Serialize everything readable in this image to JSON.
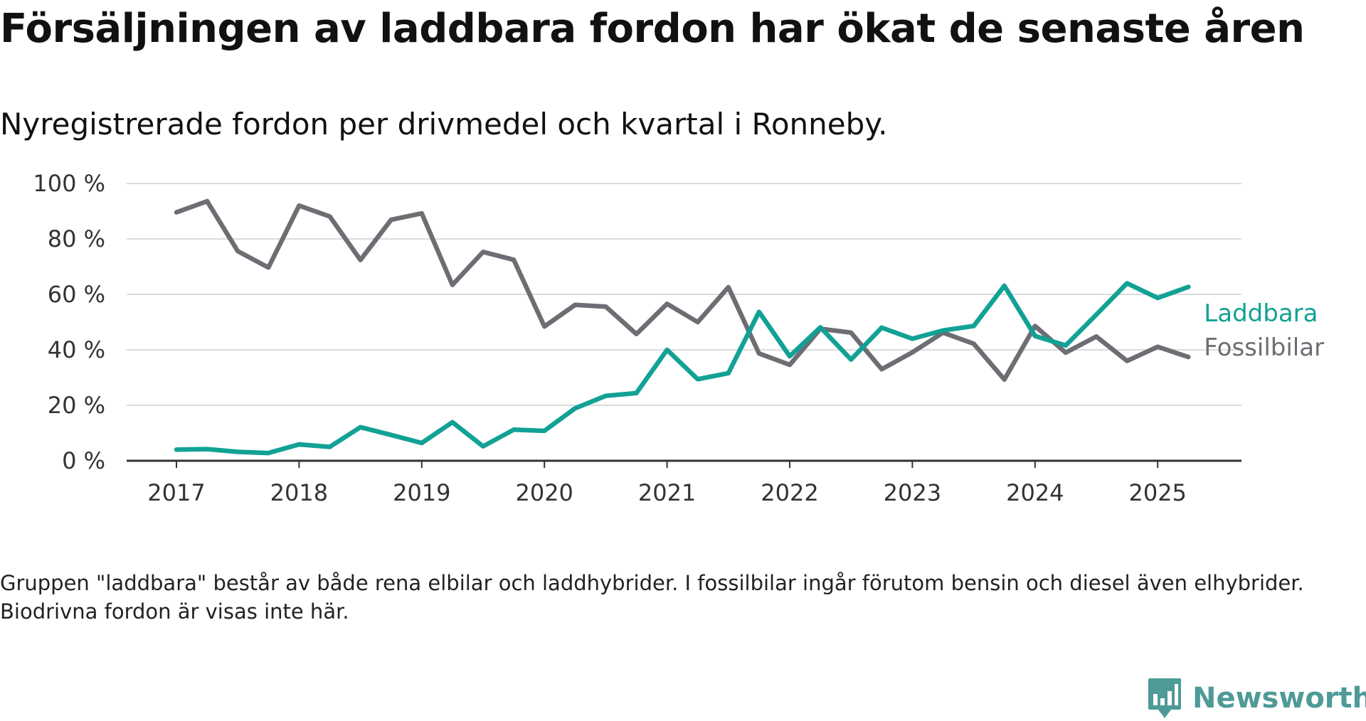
{
  "title": "Försäljningen av laddbara fordon har ökat de senaste åren",
  "subtitle": "Nyregistrerade fordon per drivmedel och kvartal i Ronneby.",
  "note": "Gruppen \"laddbara\" består av både rena elbilar och laddhybrider. I fossilbilar ingår förutom bensin och diesel även elhybrider. Biodrivna fordon är visas inte här.",
  "brand": {
    "name": "Newsworthy",
    "icon": "newsworthy-logo-icon",
    "color": "#4e9a97"
  },
  "chart_data": {
    "type": "line",
    "x_unit": "quarter",
    "x": [
      "2017 Q1",
      "2017 Q2",
      "2017 Q3",
      "2017 Q4",
      "2018 Q1",
      "2018 Q2",
      "2018 Q3",
      "2018 Q4",
      "2019 Q1",
      "2019 Q2",
      "2019 Q3",
      "2019 Q4",
      "2020 Q1",
      "2020 Q2",
      "2020 Q3",
      "2020 Q4",
      "2021 Q1",
      "2021 Q2",
      "2021 Q3",
      "2021 Q4",
      "2022 Q1",
      "2022 Q2",
      "2022 Q3",
      "2022 Q4",
      "2023 Q1",
      "2023 Q2",
      "2023 Q3",
      "2023 Q4",
      "2024 Q1",
      "2024 Q2",
      "2024 Q3",
      "2024 Q4",
      "2025 Q1",
      "2025 Q2"
    ],
    "series": [
      {
        "name": "Laddbara",
        "color": "#12a195",
        "values": [
          4,
          4.2,
          3.2,
          2.8,
          5.9,
          5,
          12.1,
          9.3,
          6.4,
          13.9,
          5.2,
          11.2,
          10.8,
          18.9,
          23.4,
          24.4,
          40,
          29.4,
          31.6,
          53.7,
          37.7,
          48.1,
          36.5,
          48,
          44,
          47,
          48.6,
          63.1,
          45,
          41.6,
          52.7,
          64,
          58.7,
          62.7
        ]
      },
      {
        "name": "Fossilbilar",
        "color": "#6d6d74",
        "values": [
          89.6,
          93.6,
          75.6,
          69.7,
          92,
          88.1,
          72.4,
          86.9,
          89.2,
          63.4,
          75.3,
          72.5,
          48.4,
          56.2,
          55.6,
          45.7,
          56.6,
          50,
          62.6,
          38.7,
          34.6,
          47.6,
          46.2,
          33,
          39.1,
          46.2,
          42.2,
          29.3,
          48.6,
          39,
          44.8,
          36,
          41.1,
          37.4
        ]
      }
    ],
    "x_ticks": [
      "2017",
      "2018",
      "2019",
      "2020",
      "2021",
      "2022",
      "2023",
      "2024",
      "2025"
    ],
    "y_ticks": [
      "0 %",
      "20 %",
      "40 %",
      "60 %",
      "80 %",
      "100 %"
    ],
    "y_tick_values": [
      0,
      20,
      40,
      60,
      80,
      100
    ],
    "ylim": [
      0,
      100
    ],
    "grid": true,
    "legend": "direct labels at line ends"
  }
}
